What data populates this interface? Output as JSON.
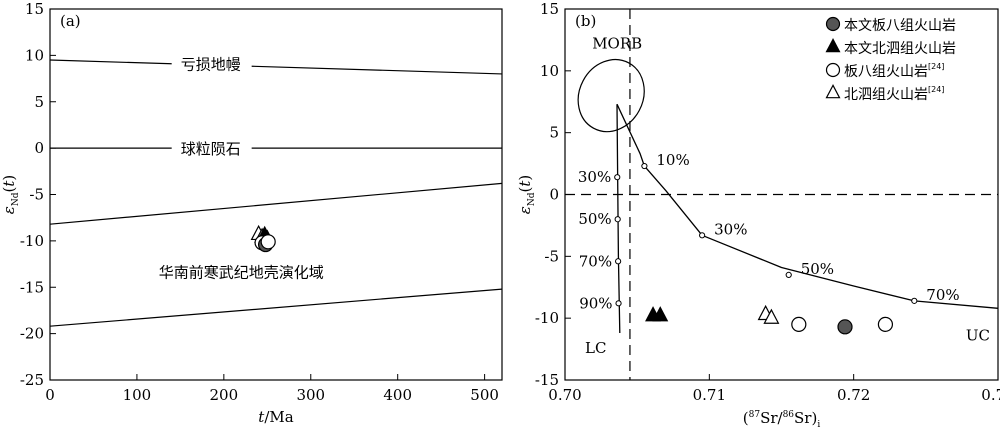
{
  "chart_data": [
    {
      "panel": "(a)",
      "type": "line",
      "xlabel": {
        "italic": "t",
        "rest": "/Ma"
      },
      "ylabel": {
        "eps": "ε",
        "sub": "Nd",
        "rest": "(t)"
      },
      "xlim": [
        0,
        520
      ],
      "ylim": [
        -25,
        15
      ],
      "xticks": [
        0,
        100,
        200,
        300,
        400,
        500
      ],
      "yticks": [
        15,
        10,
        5,
        0,
        -5,
        -10,
        -15,
        -20,
        -25
      ],
      "lines": [
        {
          "name": "亏损地幔",
          "points": [
            [
              0,
              9.5
            ],
            [
              520,
              8.0
            ]
          ]
        },
        {
          "name": "球粒陨石",
          "points": [
            [
              0,
              0
            ],
            [
              520,
              0
            ]
          ]
        },
        {
          "name": "华南前寒武纪地壳演化域 upper",
          "points": [
            [
              0,
              -8.2
            ],
            [
              520,
              -3.8
            ]
          ]
        },
        {
          "name": "华南前寒武纪地壳演化域 lower",
          "points": [
            [
              0,
              -19.2
            ],
            [
              520,
              -15.2
            ]
          ]
        }
      ],
      "annotations": [
        {
          "text": "亏损地幔",
          "x": 185,
          "y": 9.1
        },
        {
          "text": "球粒陨石",
          "x": 185,
          "y": 0
        },
        {
          "text": "华南前寒武纪地壳演化域",
          "x": 220,
          "y": -13.3
        }
      ],
      "points": [
        {
          "series": "triangle-open",
          "x": 240,
          "y": -9.3
        },
        {
          "series": "triangle-open",
          "x": 244,
          "y": -9.6
        },
        {
          "series": "triangle-filled",
          "x": 247,
          "y": -9.4
        },
        {
          "series": "triangle-filled",
          "x": 250,
          "y": -9.8
        },
        {
          "series": "circle-open",
          "x": 244,
          "y": -10.2
        },
        {
          "series": "circle-filled",
          "x": 248,
          "y": -10.4
        },
        {
          "series": "circle-open",
          "x": 251,
          "y": -10.1
        }
      ]
    },
    {
      "panel": "(b)",
      "type": "scatter",
      "xlabel": {
        "pre": "(",
        "sup1": "87",
        "mid": "Sr/",
        "sup2": "86",
        "post": "Sr)",
        "sub": "i"
      },
      "ylabel": {
        "eps": "ε",
        "sub": "Nd",
        "rest": "(t)"
      },
      "xlim": [
        0.7,
        0.73
      ],
      "ylim": [
        -15,
        15
      ],
      "xticks": [
        0.7,
        0.71,
        0.72,
        0.73
      ],
      "xtick_labels": [
        "0.70",
        "0.71",
        "0.72",
        "0.73"
      ],
      "yticks": [
        15,
        10,
        5,
        0,
        -5,
        -10,
        -15
      ],
      "ref_lines": {
        "vertical_x": 0.7045,
        "horizontal_y": 0
      },
      "morb_field": {
        "label": "MORB",
        "center": [
          0.7032,
          8.0
        ],
        "rx": 0.0022,
        "ry": 3.0
      },
      "curve_upper_crust": {
        "points": [
          [
            0.7036,
            7.3
          ],
          [
            0.7052,
            3.3
          ],
          [
            0.7055,
            2.3
          ],
          [
            0.707,
            0.3
          ],
          [
            0.7095,
            -3.3
          ],
          [
            0.715,
            -5.9
          ],
          [
            0.72,
            -7.4
          ],
          [
            0.7242,
            -8.6
          ],
          [
            0.73,
            -9.2
          ]
        ],
        "ticks": [
          {
            "x": 0.7055,
            "y": 2.3,
            "label": "10%"
          },
          {
            "x": 0.7095,
            "y": -3.3,
            "label": "30%"
          },
          {
            "x": 0.7155,
            "y": -6.5,
            "label": "50%"
          },
          {
            "x": 0.7242,
            "y": -8.6,
            "label": "70%"
          }
        ],
        "end_label": "UC"
      },
      "curve_lower_crust": {
        "points": [
          [
            0.7036,
            7.3
          ],
          [
            0.70365,
            1.0
          ],
          [
            0.7037,
            -5.0
          ],
          [
            0.7038,
            -11.2
          ]
        ],
        "ticks": [
          {
            "x": 0.70362,
            "y": 1.4,
            "label": "30%"
          },
          {
            "x": 0.70365,
            "y": -2.0,
            "label": "50%"
          },
          {
            "x": 0.70368,
            "y": -5.4,
            "label": "70%"
          },
          {
            "x": 0.70371,
            "y": -8.8,
            "label": "90%"
          }
        ],
        "end_label": "LC"
      },
      "series": [
        {
          "name": "本文板八组火山岩",
          "marker": "circle-filled",
          "points": [
            [
              0.7194,
              -10.7
            ]
          ]
        },
        {
          "name": "本文北泗组火山岩",
          "marker": "triangle-filled",
          "points": [
            [
              0.7061,
              -9.8
            ],
            [
              0.7066,
              -9.8
            ]
          ]
        },
        {
          "name": "板八组火山岩",
          "ref": "[24]",
          "marker": "circle-open",
          "points": [
            [
              0.7162,
              -10.5
            ],
            [
              0.7222,
              -10.5
            ]
          ]
        },
        {
          "name": "北泗组火山岩",
          "ref": "[24]",
          "marker": "triangle-open",
          "points": [
            [
              0.7139,
              -9.7
            ],
            [
              0.7143,
              -10.0
            ]
          ]
        }
      ],
      "legend_position": "top-right"
    }
  ]
}
